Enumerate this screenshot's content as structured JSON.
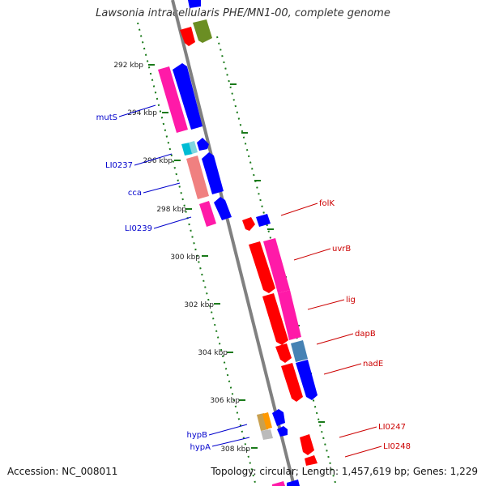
{
  "title": "Lawsonia intracellularis PHE/MN1-00, complete genome",
  "accession_text": "Accession: NC_008011",
  "summary_text": "Topology: circular; Length: 1,457,619 bp; Genes: 1,229",
  "colors": {
    "backbone": "#808080",
    "tick": "#1a7a1a",
    "reverse_label": "#0000cc",
    "forward_label": "#cc0000",
    "red": "#ff0000",
    "pink": "#ff1aa8",
    "blue": "#0000ff",
    "olive": "#6b8e23",
    "salmon": "#f08080",
    "cyan": "#00bcd4",
    "orange": "#ff9900",
    "steel": "#4682b4",
    "tan": "#c8a050",
    "gray": "#bbbbbb"
  },
  "scale_labels": [
    "292 kbp",
    "294 kbp",
    "296 kbp",
    "298 kbp",
    "300 kbp",
    "302 kbp",
    "304 kbp",
    "306 kbp",
    "308 kbp"
  ],
  "reverse_gene_labels": [
    "mutS",
    "LI0237",
    "cca",
    "LI0239",
    "hypB",
    "hypA"
  ],
  "forward_gene_labels": [
    "folK",
    "uvrB",
    "lig",
    "dapB",
    "nadE",
    "LI0247",
    "LI0248"
  ]
}
